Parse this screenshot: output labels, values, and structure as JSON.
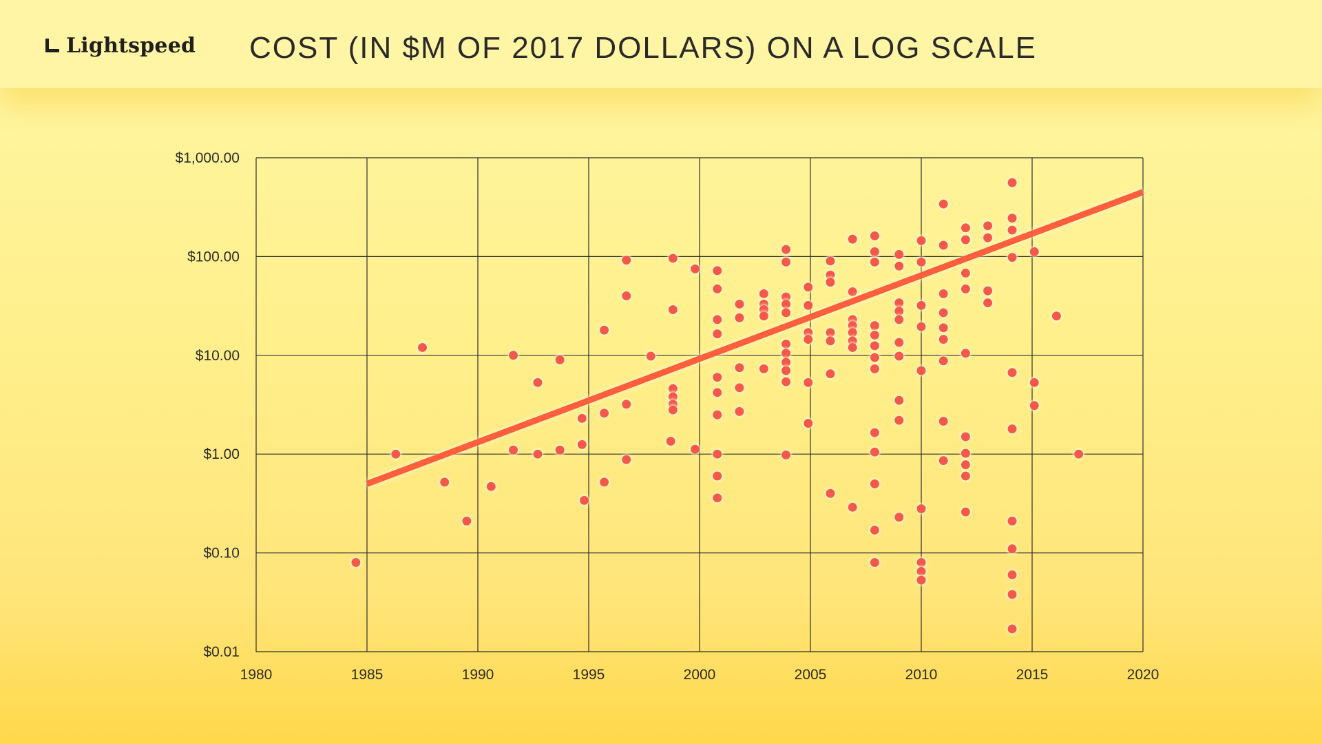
{
  "brand": {
    "name": "Lightspeed",
    "logo_icon": "lightspeed-l-icon"
  },
  "chart_data": {
    "type": "scatter",
    "title": "COST (IN $M OF 2017 DOLLARS) ON A LOG SCALE",
    "xlabel": "",
    "ylabel": "",
    "xlim": [
      1980,
      2020
    ],
    "ylim": [
      0.01,
      1000
    ],
    "y_scale": "log",
    "grid": true,
    "x_ticks": [
      "1980",
      "1985",
      "1990",
      "1995",
      "2000",
      "2005",
      "2010",
      "2015",
      "2020"
    ],
    "y_ticks": [
      "$1,000.00",
      "$100.00",
      "$10.00",
      "$1.00",
      "$0.10",
      "$0.01"
    ],
    "colors": {
      "points": "#f4594a",
      "trend": "#ff5f3a",
      "grid": "#2f2f2f"
    },
    "points": [
      [
        1984.5,
        0.08
      ],
      [
        1986.3,
        1.0
      ],
      [
        1987.5,
        12
      ],
      [
        1988.5,
        0.52
      ],
      [
        1989.5,
        0.21
      ],
      [
        1990.6,
        0.47
      ],
      [
        1991.6,
        10
      ],
      [
        1991.6,
        1.1
      ],
      [
        1992.7,
        5.3
      ],
      [
        1992.7,
        1.0
      ],
      [
        1993.7,
        9
      ],
      [
        1993.7,
        1.1
      ],
      [
        1994.7,
        2.3
      ],
      [
        1994.7,
        1.25
      ],
      [
        1994.8,
        0.34
      ],
      [
        1995.7,
        18
      ],
      [
        1995.7,
        2.6
      ],
      [
        1995.7,
        0.52
      ],
      [
        1996.7,
        92
      ],
      [
        1996.7,
        40
      ],
      [
        1996.7,
        3.2
      ],
      [
        1996.7,
        0.88
      ],
      [
        1997.8,
        9.8
      ],
      [
        1998.8,
        96
      ],
      [
        1998.8,
        29
      ],
      [
        1998.8,
        4.6
      ],
      [
        1998.8,
        3.8
      ],
      [
        1998.8,
        3.2
      ],
      [
        1998.8,
        2.8
      ],
      [
        1998.7,
        1.35
      ],
      [
        1999.8,
        75
      ],
      [
        1999.8,
        1.12
      ],
      [
        2000.8,
        72
      ],
      [
        2000.8,
        47
      ],
      [
        2000.8,
        23
      ],
      [
        2000.8,
        16.5
      ],
      [
        2000.8,
        6
      ],
      [
        2000.8,
        4.2
      ],
      [
        2000.8,
        2.5
      ],
      [
        2000.8,
        1.0
      ],
      [
        2000.8,
        0.6
      ],
      [
        2000.8,
        0.36
      ],
      [
        2001.8,
        33
      ],
      [
        2001.8,
        24
      ],
      [
        2001.8,
        7.5
      ],
      [
        2001.8,
        4.7
      ],
      [
        2001.8,
        2.7
      ],
      [
        2002.9,
        42
      ],
      [
        2002.9,
        33
      ],
      [
        2002.9,
        29
      ],
      [
        2002.9,
        25
      ],
      [
        2002.9,
        7.3
      ],
      [
        2003.9,
        118
      ],
      [
        2003.9,
        88
      ],
      [
        2003.9,
        39
      ],
      [
        2003.9,
        33
      ],
      [
        2003.9,
        27
      ],
      [
        2003.9,
        13
      ],
      [
        2003.9,
        10.5
      ],
      [
        2003.9,
        8.5
      ],
      [
        2003.9,
        7
      ],
      [
        2003.9,
        5.4
      ],
      [
        2003.9,
        0.98
      ],
      [
        2004.9,
        49
      ],
      [
        2004.9,
        32
      ],
      [
        2004.9,
        17
      ],
      [
        2004.9,
        14.5
      ],
      [
        2004.9,
        5.3
      ],
      [
        2004.9,
        2.05
      ],
      [
        2005.9,
        90
      ],
      [
        2005.9,
        65
      ],
      [
        2005.9,
        55
      ],
      [
        2005.9,
        17
      ],
      [
        2005.9,
        14
      ],
      [
        2005.9,
        6.5
      ],
      [
        2005.9,
        0.4
      ],
      [
        2006.9,
        150
      ],
      [
        2006.9,
        44
      ],
      [
        2006.9,
        23
      ],
      [
        2006.9,
        20
      ],
      [
        2006.9,
        17
      ],
      [
        2006.9,
        14
      ],
      [
        2006.9,
        12
      ],
      [
        2006.9,
        0.29
      ],
      [
        2007.9,
        162
      ],
      [
        2007.9,
        112
      ],
      [
        2007.9,
        88
      ],
      [
        2007.9,
        20
      ],
      [
        2007.9,
        16
      ],
      [
        2007.9,
        12.5
      ],
      [
        2007.9,
        9.5
      ],
      [
        2007.9,
        7.3
      ],
      [
        2007.9,
        1.65
      ],
      [
        2007.9,
        1.05
      ],
      [
        2007.9,
        0.5
      ],
      [
        2007.9,
        0.17
      ],
      [
        2007.9,
        0.08
      ],
      [
        2009.0,
        105
      ],
      [
        2009.0,
        80
      ],
      [
        2009.0,
        34
      ],
      [
        2009.0,
        28
      ],
      [
        2009.0,
        23
      ],
      [
        2009.0,
        13.5
      ],
      [
        2009.0,
        9.8
      ],
      [
        2009.0,
        3.5
      ],
      [
        2009.0,
        2.2
      ],
      [
        2009.0,
        0.23
      ],
      [
        2010.0,
        145
      ],
      [
        2010.0,
        88
      ],
      [
        2010.0,
        32
      ],
      [
        2010.0,
        19.5
      ],
      [
        2010.0,
        7
      ],
      [
        2010.0,
        0.28
      ],
      [
        2010.0,
        0.08
      ],
      [
        2010.0,
        0.065
      ],
      [
        2010.0,
        0.053
      ],
      [
        2011.0,
        340
      ],
      [
        2011.0,
        130
      ],
      [
        2011.0,
        42
      ],
      [
        2011.0,
        27
      ],
      [
        2011.0,
        19
      ],
      [
        2011.0,
        14.5
      ],
      [
        2011.0,
        8.8
      ],
      [
        2011.0,
        2.15
      ],
      [
        2011.0,
        0.86
      ],
      [
        2012.0,
        195
      ],
      [
        2012.0,
        148
      ],
      [
        2012.0,
        68
      ],
      [
        2012.0,
        47
      ],
      [
        2012.0,
        10.5
      ],
      [
        2012.0,
        1.5
      ],
      [
        2012.0,
        1.02
      ],
      [
        2012.0,
        0.78
      ],
      [
        2012.0,
        0.6
      ],
      [
        2012.0,
        0.26
      ],
      [
        2013.0,
        205
      ],
      [
        2013.0,
        155
      ],
      [
        2013.0,
        45
      ],
      [
        2013.0,
        34
      ],
      [
        2014.1,
        560
      ],
      [
        2014.1,
        245
      ],
      [
        2014.1,
        185
      ],
      [
        2014.1,
        98
      ],
      [
        2014.1,
        6.7
      ],
      [
        2014.1,
        1.8
      ],
      [
        2014.1,
        0.21
      ],
      [
        2014.1,
        0.11
      ],
      [
        2014.1,
        0.06
      ],
      [
        2014.1,
        0.038
      ],
      [
        2014.1,
        0.017
      ],
      [
        2015.1,
        112
      ],
      [
        2015.1,
        5.3
      ],
      [
        2015.1,
        3.1
      ],
      [
        2016.1,
        25
      ],
      [
        2017.1,
        1.0
      ]
    ],
    "trend_line": {
      "x": [
        1985,
        2020
      ],
      "y": [
        0.5,
        450
      ]
    }
  }
}
